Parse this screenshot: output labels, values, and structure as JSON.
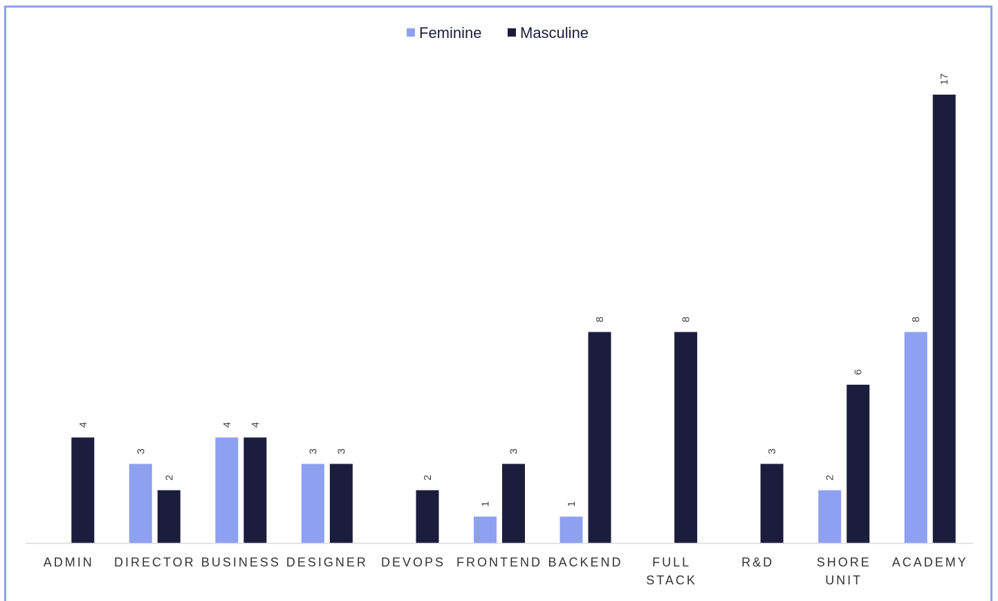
{
  "chart_data": {
    "type": "bar",
    "categories": [
      [
        "ADMIN"
      ],
      [
        "DIRECTOR"
      ],
      [
        "BUSINESS"
      ],
      [
        "DESIGNER"
      ],
      [
        "DEVOPS"
      ],
      [
        "FRONTEND"
      ],
      [
        "BACKEND"
      ],
      [
        "FULL",
        "STACK"
      ],
      [
        "R&D"
      ],
      [
        "SHORE",
        "UNIT"
      ],
      [
        "ACADEMY"
      ]
    ],
    "series": [
      {
        "name": "Feminine",
        "color": "#8ea1f0",
        "values": [
          null,
          3,
          4,
          3,
          null,
          1,
          1,
          null,
          null,
          2,
          8
        ]
      },
      {
        "name": "Masculine",
        "color": "#1c1d3d",
        "values": [
          4,
          2,
          4,
          3,
          2,
          3,
          8,
          8,
          3,
          6,
          17
        ]
      }
    ],
    "ylim": [
      0,
      17
    ],
    "legend_position": "top-center",
    "grid": false,
    "data_labels": true
  }
}
